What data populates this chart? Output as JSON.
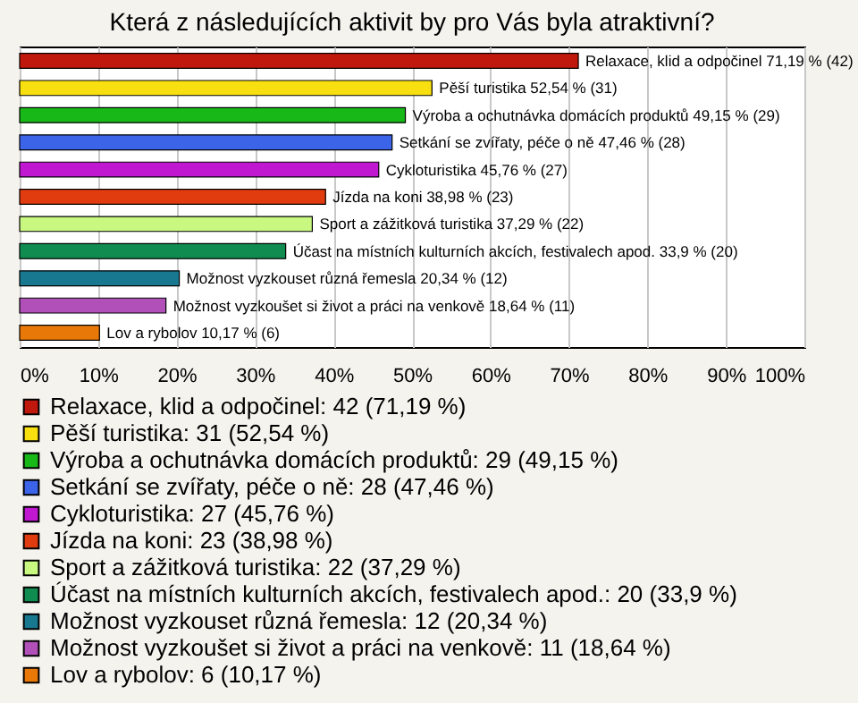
{
  "chart_data": {
    "type": "bar",
    "orientation": "horizontal",
    "title": "Která z následujících aktivit by pro Vás byla atraktivní?",
    "categories": [
      null,
      null,
      null,
      null,
      null,
      null,
      null,
      null,
      null,
      null,
      null
    ],
    "xlim": [
      0,
      100
    ],
    "xticks": [
      {
        "value": 0,
        "label": "0%"
      },
      {
        "value": 10,
        "label": "10%"
      },
      {
        "value": 20,
        "label": "20%"
      },
      {
        "value": 30,
        "label": "30%"
      },
      {
        "value": 40,
        "label": "40%"
      },
      {
        "value": 50,
        "label": "50%"
      },
      {
        "value": 60,
        "label": "60%"
      },
      {
        "value": 70,
        "label": "70%"
      },
      {
        "value": 80,
        "label": "80%"
      },
      {
        "value": 90,
        "label": "90%"
      },
      {
        "value": 100,
        "label": "100%"
      }
    ],
    "grid": "x",
    "legend": "bottom",
    "tick_labels": "x",
    "series": [
      {
        "name": "Relaxace, klid a odpočinel: 42 (71,19 %)",
        "color": "#c0180c",
        "values": [
          71.19,
          null,
          null,
          null,
          null,
          null,
          null,
          null,
          null,
          null,
          null
        ],
        "value_labels": [
          "Relaxace, klid a odpočinel 71,19 % (42)",
          null,
          null,
          null,
          null,
          null,
          null,
          null,
          null,
          null,
          null
        ]
      },
      {
        "name": "Pěší turistika: 31 (52,54 %)",
        "color": "#f8e010",
        "values": [
          null,
          52.54,
          null,
          null,
          null,
          null,
          null,
          null,
          null,
          null,
          null
        ],
        "value_labels": [
          null,
          "Pěší turistika 52,54 % (31)",
          null,
          null,
          null,
          null,
          null,
          null,
          null,
          null,
          null
        ]
      },
      {
        "name": "Výroba a ochutnávka domácích produktů: 29 (49,15 %)",
        "color": "#18b818",
        "values": [
          null,
          null,
          49.15,
          null,
          null,
          null,
          null,
          null,
          null,
          null,
          null
        ],
        "value_labels": [
          null,
          null,
          "Výroba a ochutnávka domácích produktů 49,15 % (29)",
          null,
          null,
          null,
          null,
          null,
          null,
          null,
          null
        ]
      },
      {
        "name": "Setkání se zvířaty, péče o ně: 28 (47,46 %)",
        "color": "#3c64e8",
        "values": [
          null,
          null,
          null,
          47.46,
          null,
          null,
          null,
          null,
          null,
          null,
          null
        ],
        "value_labels": [
          null,
          null,
          null,
          "Setkání se zvířaty, péče o ně 47,46 % (28)",
          null,
          null,
          null,
          null,
          null,
          null,
          null
        ]
      },
      {
        "name": "Cykloturistika: 27 (45,76 %)",
        "color": "#c018d0",
        "values": [
          null,
          null,
          null,
          null,
          45.76,
          null,
          null,
          null,
          null,
          null,
          null
        ],
        "value_labels": [
          null,
          null,
          null,
          null,
          "Cykloturistika 45,76 % (27)",
          null,
          null,
          null,
          null,
          null,
          null
        ]
      },
      {
        "name": "Jízda na koni: 23 (38,98 %)",
        "color": "#e03c10",
        "values": [
          null,
          null,
          null,
          null,
          null,
          38.98,
          null,
          null,
          null,
          null,
          null
        ],
        "value_labels": [
          null,
          null,
          null,
          null,
          null,
          "Jízda na koni 38,98 % (23)",
          null,
          null,
          null,
          null,
          null
        ]
      },
      {
        "name": "Sport a zážitková turistika: 22 (37,29 %)",
        "color": "#c8f880",
        "values": [
          null,
          null,
          null,
          null,
          null,
          null,
          37.29,
          null,
          null,
          null,
          null
        ],
        "value_labels": [
          null,
          null,
          null,
          null,
          null,
          null,
          "Sport a zážitková turistika 37,29 % (22)",
          null,
          null,
          null,
          null
        ]
      },
      {
        "name": "Účast na místních kulturních akcích, festivalech apod.: 20 (33,9 %)",
        "color": "#108c50",
        "values": [
          null,
          null,
          null,
          null,
          null,
          null,
          null,
          33.9,
          null,
          null,
          null
        ],
        "value_labels": [
          null,
          null,
          null,
          null,
          null,
          null,
          null,
          "Účast na místních kulturních akcích, festivalech apod. 33,9 % (20)",
          null,
          null,
          null
        ]
      },
      {
        "name": "Možnost vyzkouset různá řemesla: 12 (20,34 %)",
        "color": "#187890",
        "values": [
          null,
          null,
          null,
          null,
          null,
          null,
          null,
          null,
          20.34,
          null,
          null
        ],
        "value_labels": [
          null,
          null,
          null,
          null,
          null,
          null,
          null,
          null,
          "Možnost vyzkouset různá řemesla 20,34 % (12)",
          null,
          null
        ]
      },
      {
        "name": "Možnost vyzkoušet si život a práci na venkově: 11 (18,64 %)",
        "color": "#b050b8",
        "values": [
          null,
          null,
          null,
          null,
          null,
          null,
          null,
          null,
          null,
          18.64,
          null
        ],
        "value_labels": [
          null,
          null,
          null,
          null,
          null,
          null,
          null,
          null,
          null,
          "Možnost vyzkoušet si život a práci na venkově 18,64 % (11)",
          null
        ]
      },
      {
        "name": "Lov a rybolov: 6 (10,17 %)",
        "color": "#e87808",
        "values": [
          null,
          null,
          null,
          null,
          null,
          null,
          null,
          null,
          null,
          null,
          10.17
        ],
        "value_labels": [
          null,
          null,
          null,
          null,
          null,
          null,
          null,
          null,
          null,
          null,
          "Lov a rybolov 10,17 % (6)"
        ]
      }
    ]
  }
}
